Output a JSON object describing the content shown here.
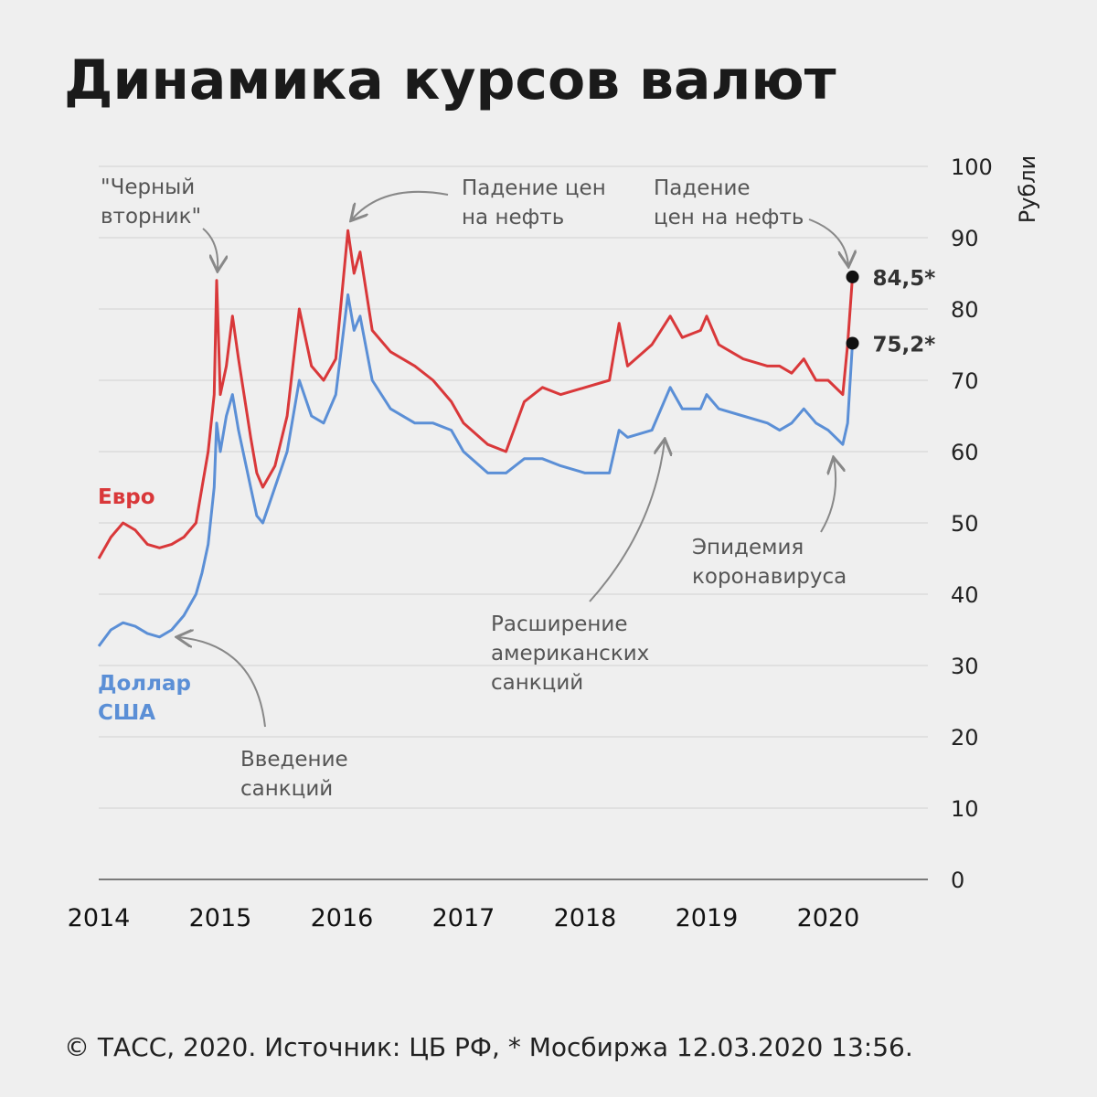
{
  "chart_data": {
    "type": "line",
    "title": "Динамика курсов валют",
    "y_label": "Рубли",
    "source": "© ТАСС, 2020. Источник: ЦБ РФ, * Мосбиржа 12.03.2020 13:56.",
    "x": [
      2014.0,
      2014.1,
      2014.2,
      2014.3,
      2014.4,
      2014.5,
      2014.6,
      2014.7,
      2014.8,
      2014.85,
      2014.9,
      2014.95,
      2014.97,
      2015.0,
      2015.05,
      2015.1,
      2015.15,
      2015.25,
      2015.3,
      2015.35,
      2015.45,
      2015.55,
      2015.65,
      2015.75,
      2015.85,
      2015.95,
      2016.05,
      2016.1,
      2016.15,
      2016.25,
      2016.4,
      2016.6,
      2016.75,
      2016.9,
      2017.0,
      2017.2,
      2017.35,
      2017.5,
      2017.65,
      2017.8,
      2018.0,
      2018.2,
      2018.28,
      2018.35,
      2018.55,
      2018.7,
      2018.8,
      2018.95,
      2019.0,
      2019.1,
      2019.3,
      2019.5,
      2019.6,
      2019.7,
      2019.8,
      2019.9,
      2020.0,
      2020.12,
      2020.16,
      2020.2
    ],
    "series": [
      {
        "name": "Евро",
        "color": "#d9383a",
        "values": [
          45,
          48,
          50,
          49,
          47,
          46.5,
          47,
          48,
          50,
          55,
          60,
          68,
          84,
          68,
          72,
          79,
          73,
          62,
          57,
          55,
          58,
          65,
          80,
          72,
          70,
          73,
          91,
          85,
          88,
          77,
          74,
          72,
          70,
          67,
          64,
          61,
          60,
          67,
          69,
          68,
          69,
          70,
          78,
          72,
          75,
          79,
          76,
          77,
          79,
          75,
          73,
          72,
          72,
          71,
          73,
          70,
          70,
          68,
          75,
          84.5
        ],
        "value_labels": [
          null,
          null,
          null,
          null,
          null,
          null,
          null,
          null,
          null,
          null,
          null,
          null,
          null,
          null,
          null,
          null,
          null,
          null,
          null,
          null,
          null,
          null,
          null,
          null,
          null,
          null,
          null,
          null,
          null,
          null,
          null,
          null,
          null,
          null,
          null,
          null,
          null,
          null,
          null,
          null,
          null,
          null,
          null,
          null,
          null,
          null,
          null,
          null,
          null,
          null,
          null,
          null,
          null,
          null,
          null,
          null,
          null,
          null,
          null,
          "84,5*"
        ]
      },
      {
        "name": "Доллар США",
        "color": "#5b8fd6",
        "values": [
          32.7,
          35,
          36,
          35.5,
          34.5,
          34,
          35,
          37,
          40,
          43,
          47,
          55,
          64,
          60,
          65,
          68,
          63,
          55,
          51,
          50,
          55,
          60,
          70,
          65,
          64,
          68,
          82,
          77,
          79,
          70,
          66,
          64,
          64,
          63,
          60,
          57,
          57,
          59,
          59,
          58,
          57,
          57,
          63,
          62,
          63,
          69,
          66,
          66,
          68,
          66,
          65,
          64,
          63,
          64,
          66,
          64,
          63,
          61,
          64,
          75.2
        ],
        "value_labels": [
          null,
          null,
          null,
          null,
          null,
          null,
          null,
          null,
          null,
          null,
          null,
          null,
          null,
          null,
          null,
          null,
          null,
          null,
          null,
          null,
          null,
          null,
          null,
          null,
          null,
          null,
          null,
          null,
          null,
          null,
          null,
          null,
          null,
          null,
          null,
          null,
          null,
          null,
          null,
          null,
          null,
          null,
          null,
          null,
          null,
          null,
          null,
          null,
          null,
          null,
          null,
          null,
          null,
          null,
          null,
          null,
          null,
          null,
          null,
          "75,2*"
        ]
      }
    ],
    "xlim": [
      2014,
      2020.82
    ],
    "xticks": [
      2014,
      2015,
      2016,
      2017,
      2018,
      2019,
      2020
    ],
    "ylim": [
      0,
      100
    ],
    "yticks": [
      0,
      10,
      20,
      30,
      40,
      50,
      60,
      70,
      80,
      90,
      100
    ],
    "grid": true,
    "annotations": [
      {
        "lines": [
          "\"Черный",
          "вторник\""
        ]
      },
      {
        "lines": [
          "Падение цен",
          "на нефть"
        ]
      },
      {
        "lines": [
          "Падение",
          "цен на нефть"
        ]
      },
      {
        "lines": [
          "Эпидемия",
          "коронавируса"
        ]
      },
      {
        "lines": [
          "Расширение",
          "американских",
          "санкций"
        ]
      },
      {
        "lines": [
          "Введение",
          "санкций"
        ]
      }
    ]
  }
}
